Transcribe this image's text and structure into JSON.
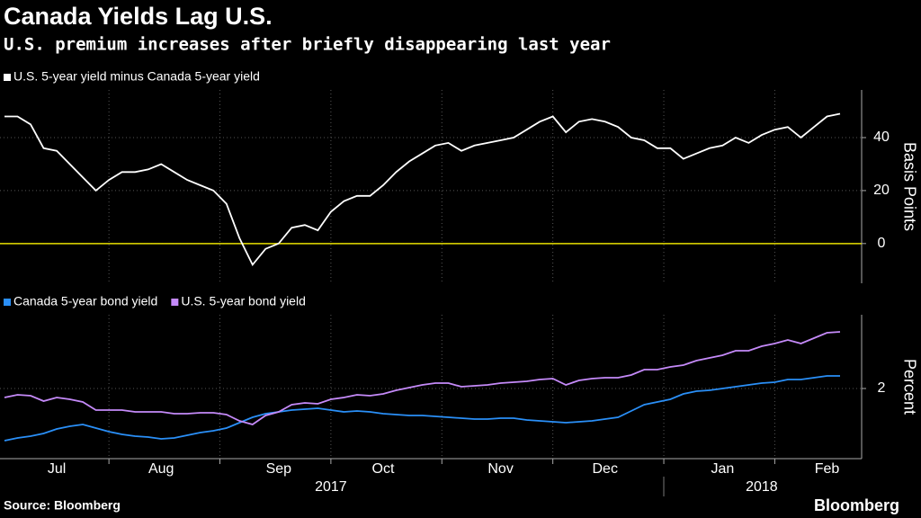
{
  "title": "Canada Yields Lag U.S.",
  "subtitle": "U.S. premium increases after briefly disappearing last year",
  "source": "Source: Bloomberg",
  "brand": "Bloomberg",
  "chart_data": [
    {
      "type": "line",
      "ylabel": "Basis Points",
      "ylim": [
        -15,
        58
      ],
      "yticks": [
        0,
        20,
        40
      ],
      "grid": true,
      "reference_line": {
        "value": 0,
        "color": "#e8e000"
      },
      "series": [
        {
          "name": "U.S. 5-year yield minus Canada 5-year yield",
          "color": "#ffffff",
          "values": [
            48,
            48,
            45,
            36,
            35,
            30,
            25,
            20,
            24,
            27,
            27,
            28,
            30,
            27,
            24,
            22,
            20,
            15,
            2,
            -8,
            -2,
            0,
            6,
            7,
            5,
            12,
            16,
            18,
            18,
            22,
            27,
            31,
            34,
            37,
            38,
            35,
            37,
            38,
            39,
            40,
            43,
            46,
            48,
            42,
            46,
            47,
            46,
            44,
            40,
            39,
            36,
            36,
            32,
            34,
            36,
            37,
            40,
            38,
            41,
            43,
            44,
            40,
            44,
            48,
            49
          ]
        }
      ]
    },
    {
      "type": "line",
      "ylabel": "Percent",
      "ylim": [
        1.22,
        2.82
      ],
      "yticks": [
        2
      ],
      "grid": true,
      "categories": [
        null,
        null,
        null,
        null,
        "Jul",
        null,
        null,
        null,
        null,
        null,
        null,
        null,
        "Aug",
        null,
        null,
        null,
        null,
        null,
        null,
        null,
        null,
        "Sep",
        null,
        null,
        null,
        null,
        null,
        null,
        null,
        "Oct",
        null,
        null,
        null,
        null,
        null,
        null,
        null,
        null,
        "Nov",
        null,
        null,
        null,
        null,
        null,
        null,
        null,
        "Dec",
        null,
        null,
        null,
        null,
        null,
        null,
        null,
        null,
        "Jan",
        null,
        null,
        null,
        null,
        null,
        null,
        null,
        "Feb",
        null
      ],
      "years": [
        null,
        null,
        null,
        null,
        null,
        null,
        null,
        null,
        null,
        null,
        null,
        null,
        null,
        null,
        null,
        null,
        null,
        null,
        null,
        null,
        null,
        null,
        null,
        null,
        null,
        "2017",
        null,
        null,
        null,
        null,
        null,
        null,
        null,
        null,
        null,
        null,
        null,
        null,
        null,
        null,
        null,
        null,
        null,
        null,
        null,
        null,
        null,
        null,
        null,
        null,
        null,
        null,
        null,
        null,
        null,
        null,
        null,
        null,
        "2018",
        null,
        null,
        null,
        null,
        null,
        null
      ],
      "series": [
        {
          "name": "Canada 5-year bond yield",
          "color": "#2a8ff7",
          "values": [
            1.42,
            1.45,
            1.47,
            1.5,
            1.55,
            1.58,
            1.6,
            1.56,
            1.52,
            1.49,
            1.47,
            1.46,
            1.44,
            1.45,
            1.48,
            1.51,
            1.53,
            1.56,
            1.62,
            1.68,
            1.72,
            1.74,
            1.76,
            1.77,
            1.78,
            1.76,
            1.74,
            1.75,
            1.74,
            1.72,
            1.71,
            1.7,
            1.7,
            1.69,
            1.68,
            1.67,
            1.66,
            1.66,
            1.67,
            1.67,
            1.65,
            1.64,
            1.63,
            1.62,
            1.63,
            1.64,
            1.66,
            1.68,
            1.75,
            1.82,
            1.85,
            1.88,
            1.94,
            1.97,
            1.98,
            2.0,
            2.02,
            2.04,
            2.06,
            2.07,
            2.1,
            2.1,
            2.12,
            2.14,
            2.14
          ]
        },
        {
          "name": "U.S. 5-year bond yield",
          "color": "#c58af9",
          "values": [
            1.9,
            1.93,
            1.92,
            1.86,
            1.9,
            1.88,
            1.85,
            1.76,
            1.76,
            1.76,
            1.74,
            1.74,
            1.74,
            1.72,
            1.72,
            1.73,
            1.73,
            1.71,
            1.64,
            1.6,
            1.7,
            1.74,
            1.82,
            1.84,
            1.83,
            1.88,
            1.9,
            1.93,
            1.92,
            1.94,
            1.98,
            2.01,
            2.04,
            2.06,
            2.06,
            2.02,
            2.03,
            2.04,
            2.06,
            2.07,
            2.08,
            2.1,
            2.11,
            2.04,
            2.09,
            2.11,
            2.12,
            2.12,
            2.15,
            2.21,
            2.21,
            2.24,
            2.26,
            2.31,
            2.34,
            2.37,
            2.42,
            2.42,
            2.47,
            2.5,
            2.54,
            2.5,
            2.56,
            2.62,
            2.63
          ]
        }
      ]
    }
  ]
}
